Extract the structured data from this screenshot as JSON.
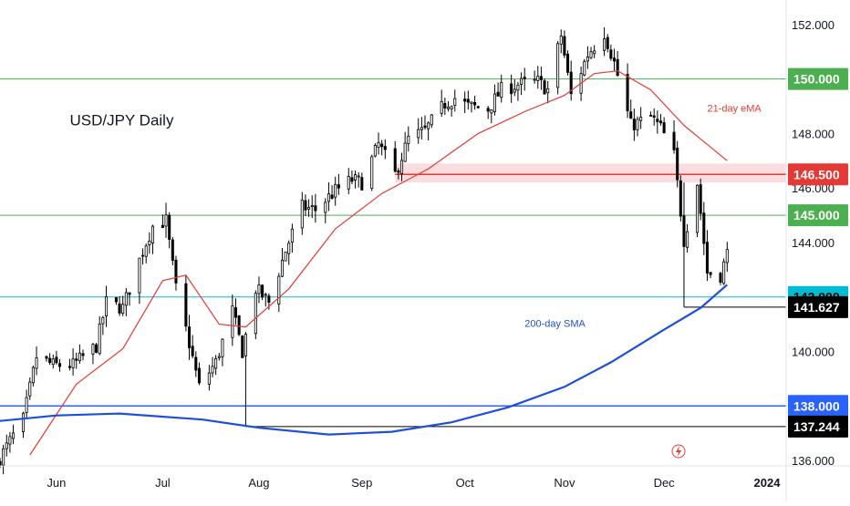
{
  "chart_data": {
    "type": "candlestick",
    "title": "USD/JPY Daily",
    "colors": {
      "up": "#ffffff",
      "down": "#000000",
      "ema": "#e53935",
      "sma": "#1e4fd8",
      "level_green": "#4caf50",
      "level_cyan": "#00bcd4",
      "level_blue": "#2962ff",
      "level_red": "#e53935",
      "zone_fill": "#f8cfd3",
      "price_label_text": "#000000",
      "axis_text": "#131722"
    },
    "y_axis": {
      "range": [
        135.8,
        152.9
      ],
      "ticks": [
        "136.000",
        "138.000",
        "140.000",
        "142.000",
        "144.000",
        "146.000",
        "148.000",
        "150.000",
        "152.000"
      ],
      "tick_values": [
        136,
        138,
        140,
        142,
        144,
        146,
        148,
        150,
        152
      ]
    },
    "x_axis": {
      "range": [
        "2023-05-15",
        "2024-01-26"
      ],
      "labels": [
        {
          "text": "Jun",
          "date": "2023-06-01"
        },
        {
          "text": "Jul",
          "date": "2023-07-03"
        },
        {
          "text": "Aug",
          "date": "2023-08-01"
        },
        {
          "text": "Sep",
          "date": "2023-09-01"
        },
        {
          "text": "Oct",
          "date": "2023-10-02"
        },
        {
          "text": "Nov",
          "date": "2023-11-01"
        },
        {
          "text": "Dec",
          "date": "2023-12-01"
        },
        {
          "text": "2024",
          "date": "2024-01-01",
          "bold": true
        }
      ]
    },
    "levels": [
      {
        "name": "level-150",
        "value": 150.0,
        "label": "150.000",
        "color": "#4caf50",
        "label_bg": "#4caf50",
        "label_fg": "#ffffff",
        "from": "2023-05-15"
      },
      {
        "name": "level-146-5",
        "value": 146.5,
        "label": "146.500",
        "color": "#e53935",
        "label_bg": "#e53935",
        "label_fg": "#ffffff",
        "from": "2023-09-11"
      },
      {
        "name": "level-145",
        "value": 145.0,
        "label": "145.000",
        "color": "#4caf50",
        "label_bg": "#4caf50",
        "label_fg": "#ffffff",
        "from": "2023-05-15"
      },
      {
        "name": "level-142",
        "value": 142.0,
        "label": "142.000",
        "color": "#00bcd4",
        "label_bg": "#00bcd4",
        "label_fg": "#000000",
        "from": "2023-05-15"
      },
      {
        "name": "level-141-627",
        "value": 141.627,
        "label": "141.627",
        "color": "#000000",
        "label_bg": "#000000",
        "label_fg": "#ffffff",
        "from": "2023-12-07"
      },
      {
        "name": "level-138",
        "value": 138.0,
        "label": "138.000",
        "color": "#2962ff",
        "label_bg": "#2962ff",
        "label_fg": "#ffffff",
        "from": "2023-05-15"
      },
      {
        "name": "level-137-244",
        "value": 137.244,
        "label": "137.244",
        "color": "#000000",
        "label_bg": "#000000",
        "label_fg": "#ffffff",
        "from": "2023-07-28"
      }
    ],
    "zone": {
      "from": "2023-09-11",
      "y_low": 146.2,
      "y_high": 146.9
    },
    "annotations": [
      {
        "name": "ema-label",
        "text": "21-day eMA",
        "x": "2023-12-14",
        "y": 148.8,
        "color": "#e53935"
      },
      {
        "name": "sma-label",
        "text": "200-day SMA",
        "x": "2023-10-20",
        "y": 140.9,
        "color": "#1e4fd8"
      }
    ],
    "title_position": {
      "x": "2023-06-05",
      "y": 148.3
    },
    "candles_source": "generated from anchor closes below",
    "close_anchors": [
      [
        "2023-05-15",
        136.1
      ],
      [
        "2023-05-22",
        137.5
      ],
      [
        "2023-05-26",
        139.8
      ],
      [
        "2023-05-31",
        139.5
      ],
      [
        "2023-06-06",
        139.5
      ],
      [
        "2023-06-13",
        140.2
      ],
      [
        "2023-06-16",
        141.8
      ],
      [
        "2023-06-21",
        141.6
      ],
      [
        "2023-06-27",
        143.7
      ],
      [
        "2023-06-30",
        144.6
      ],
      [
        "2023-07-04",
        144.8
      ],
      [
        "2023-07-07",
        142.3
      ],
      [
        "2023-07-11",
        140.3
      ],
      [
        "2023-07-14",
        138.7
      ],
      [
        "2023-07-19",
        139.6
      ],
      [
        "2023-07-24",
        141.5
      ],
      [
        "2023-07-27",
        140.0
      ],
      [
        "2023-07-31",
        142.3
      ],
      [
        "2023-08-04",
        141.8
      ],
      [
        "2023-08-09",
        143.7
      ],
      [
        "2023-08-14",
        145.3
      ],
      [
        "2023-08-18",
        145.2
      ],
      [
        "2023-08-24",
        145.9
      ],
      [
        "2023-08-29",
        146.3
      ],
      [
        "2023-09-01",
        146.2
      ],
      [
        "2023-09-06",
        147.6
      ],
      [
        "2023-09-11",
        146.5
      ],
      [
        "2023-09-15",
        147.8
      ],
      [
        "2023-09-20",
        148.1
      ],
      [
        "2023-09-26",
        149.1
      ],
      [
        "2023-09-29",
        149.3
      ],
      [
        "2023-10-03",
        149.0
      ],
      [
        "2023-10-09",
        148.9
      ],
      [
        "2023-10-13",
        149.6
      ],
      [
        "2023-10-18",
        149.8
      ],
      [
        "2023-10-24",
        149.9
      ],
      [
        "2023-10-27",
        149.6
      ],
      [
        "2023-10-31",
        151.6
      ],
      [
        "2023-11-03",
        149.4
      ],
      [
        "2023-11-08",
        150.9
      ],
      [
        "2023-11-13",
        151.7
      ],
      [
        "2023-11-16",
        150.6
      ],
      [
        "2023-11-21",
        148.3
      ],
      [
        "2023-11-27",
        148.6
      ],
      [
        "2023-11-30",
        148.2
      ],
      [
        "2023-12-04",
        147.2
      ],
      [
        "2023-12-07",
        144.1
      ],
      [
        "2023-12-11",
        146.2
      ],
      [
        "2023-12-14",
        142.9
      ],
      [
        "2023-12-18",
        142.8
      ],
      [
        "2023-12-20",
        143.6
      ]
    ],
    "ema_points": [
      [
        "2023-05-24",
        136.2
      ],
      [
        "2023-06-07",
        138.8
      ],
      [
        "2023-06-21",
        140.1
      ],
      [
        "2023-07-03",
        142.6
      ],
      [
        "2023-07-10",
        142.8
      ],
      [
        "2023-07-20",
        141.0
      ],
      [
        "2023-07-28",
        140.9
      ],
      [
        "2023-08-10",
        142.3
      ],
      [
        "2023-08-24",
        144.5
      ],
      [
        "2023-09-07",
        145.8
      ],
      [
        "2023-09-21",
        146.7
      ],
      [
        "2023-10-06",
        148.0
      ],
      [
        "2023-10-20",
        148.8
      ],
      [
        "2023-11-01",
        149.4
      ],
      [
        "2023-11-10",
        150.2
      ],
      [
        "2023-11-17",
        150.3
      ],
      [
        "2023-11-27",
        149.6
      ],
      [
        "2023-12-07",
        148.3
      ],
      [
        "2023-12-20",
        147.0
      ]
    ],
    "sma_points": [
      [
        "2023-05-15",
        137.45
      ],
      [
        "2023-06-01",
        137.65
      ],
      [
        "2023-06-20",
        137.72
      ],
      [
        "2023-07-15",
        137.5
      ],
      [
        "2023-08-01",
        137.2
      ],
      [
        "2023-08-22",
        136.95
      ],
      [
        "2023-09-10",
        137.05
      ],
      [
        "2023-09-28",
        137.4
      ],
      [
        "2023-10-15",
        137.95
      ],
      [
        "2023-11-01",
        138.7
      ],
      [
        "2023-11-15",
        139.6
      ],
      [
        "2023-12-01",
        140.8
      ],
      [
        "2023-12-12",
        141.6
      ],
      [
        "2023-12-20",
        142.45
      ]
    ]
  }
}
